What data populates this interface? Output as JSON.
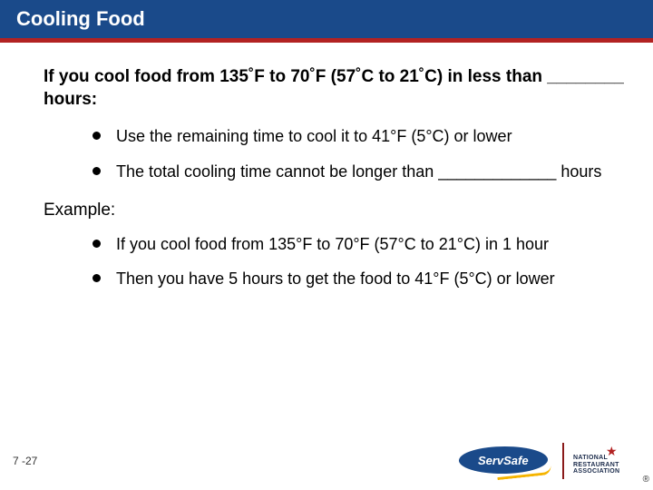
{
  "title": "Cooling Food",
  "lead": "If you cool food from 135˚F to 70˚F (57˚C to 21˚C) in less than ________ hours:",
  "bullets1": [
    "Use the remaining time to cool it to 41°F (5°C) or lower",
    "The total cooling time cannot be longer than _____________ hours"
  ],
  "exampleLabel": "Example:",
  "bullets2": [
    "If you cool food from 135°F to 70°F (57°C to 21°C) in 1 hour",
    "Then you have 5 hours to get the food to 41°F (5°C) or lower"
  ],
  "pageNumber": "7 -27",
  "logo": {
    "servsafe": "ServSafe",
    "nraLine1": "NATIONAL",
    "nraLine2": "RESTAURANT",
    "nraLine3": "ASSOCIATION",
    "reg": "®"
  },
  "colors": {
    "headerBg": "#1a4a8a",
    "rule": "#b22222",
    "text": "#000000"
  }
}
